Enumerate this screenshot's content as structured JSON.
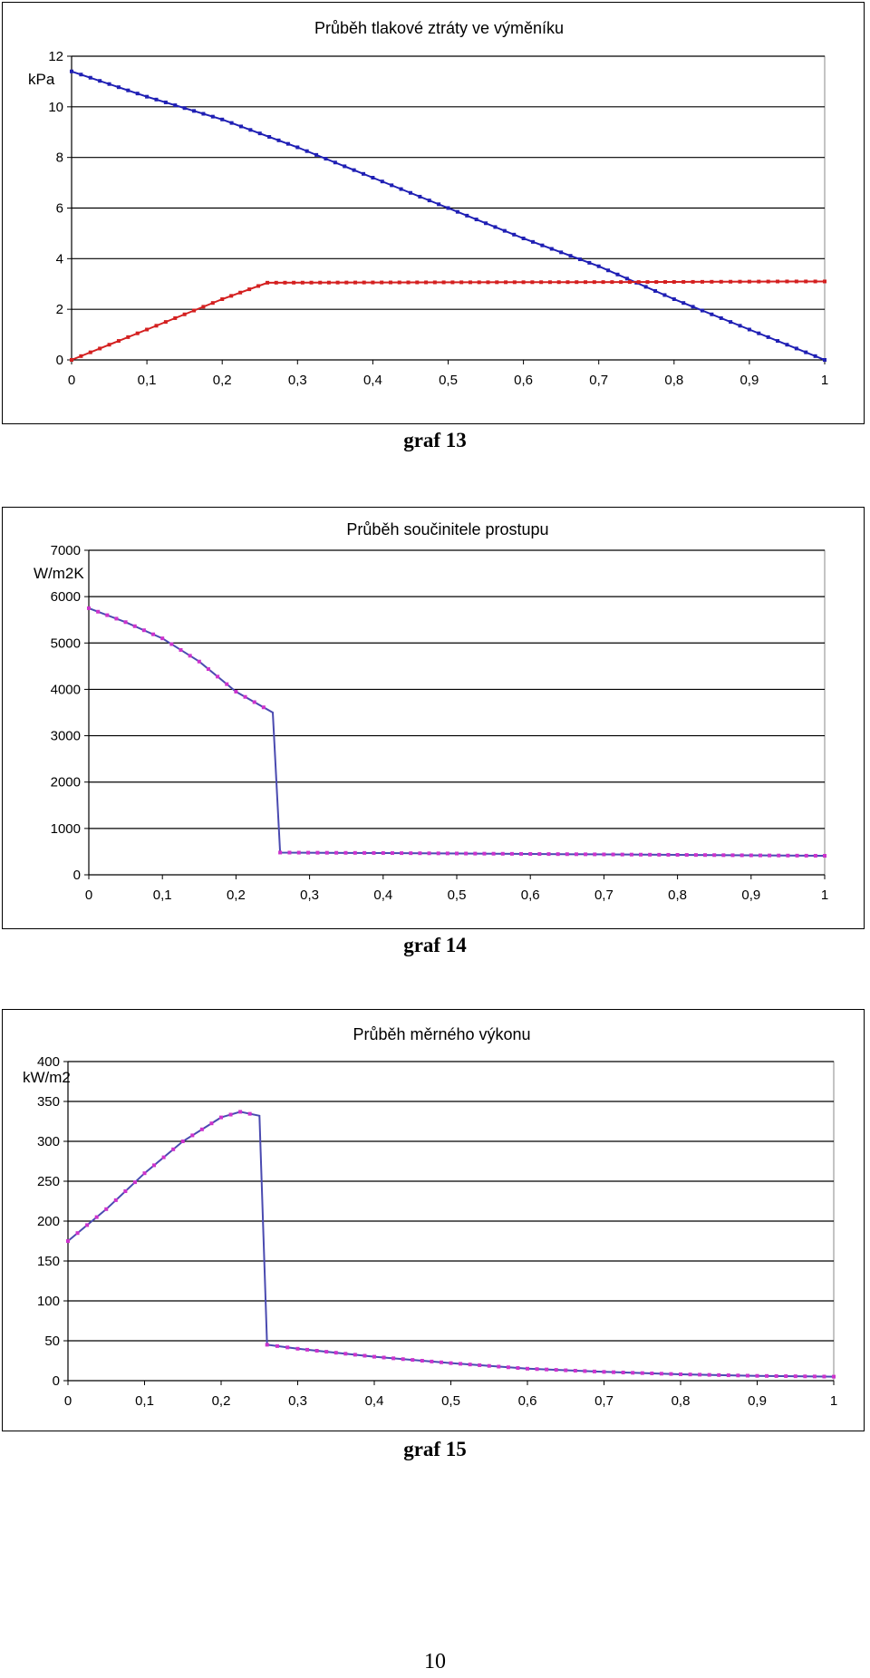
{
  "charts": [
    {
      "caption": "graf 13",
      "chart_data": {
        "type": "line",
        "title": "Průběh tlakové ztráty ve výměníku",
        "ylabel": "kPa",
        "xlabel": "",
        "xlim": [
          0,
          1
        ],
        "ylim": [
          0,
          12
        ],
        "x_ticks": [
          "0",
          "0,1",
          "0,2",
          "0,3",
          "0,4",
          "0,5",
          "0,6",
          "0,7",
          "0,8",
          "0,9",
          "1"
        ],
        "y_ticks": [
          "0",
          "2",
          "4",
          "6",
          "8",
          "10",
          "12"
        ],
        "grid": true,
        "legend": "none",
        "series": [
          {
            "color": "#1f1fb4",
            "x": [
              0,
              0.1,
              0.2,
              0.3,
              0.4,
              0.5,
              0.6,
              0.7,
              0.8,
              0.9,
              1.0
            ],
            "y": [
              11.4,
              10.4,
              9.5,
              8.4,
              7.2,
              6.0,
              4.8,
              3.7,
              2.4,
              1.2,
              0.0
            ]
          },
          {
            "color": "#d42020",
            "x": [
              0,
              0.1,
              0.2,
              0.26,
              0.4,
              0.6,
              0.8,
              0.95,
              1.0
            ],
            "y": [
              0,
              1.2,
              2.4,
              3.05,
              3.06,
              3.07,
              3.08,
              3.1,
              3.1
            ]
          }
        ]
      }
    },
    {
      "caption": "graf 14",
      "chart_data": {
        "type": "line",
        "title": "Průběh součinitele prostupu",
        "ylabel": "W/m2K",
        "xlabel": "",
        "xlim": [
          0,
          1
        ],
        "ylim": [
          0,
          7000
        ],
        "x_ticks": [
          "0",
          "0,1",
          "0,2",
          "0,3",
          "0,4",
          "0,5",
          "0,6",
          "0,7",
          "0,8",
          "0,9",
          "1"
        ],
        "y_ticks": [
          "0",
          "1000",
          "2000",
          "3000",
          "4000",
          "5000",
          "6000",
          "7000"
        ],
        "grid": true,
        "legend": "none",
        "series": [
          {
            "color": "#cc33cc",
            "line_color": "#4a4ab0",
            "x": [
              0,
              0.05,
              0.1,
              0.15,
              0.2,
              0.25,
              0.26,
              0.4,
              0.6,
              0.8,
              1.0
            ],
            "y": [
              5750,
              5450,
              5100,
              4600,
              3950,
              3500,
              480,
              470,
              450,
              430,
              410
            ]
          }
        ]
      }
    },
    {
      "caption": "graf 15",
      "chart_data": {
        "type": "line",
        "title": "Průběh měrného výkonu",
        "ylabel": "kW/m2",
        "xlabel": "",
        "xlim": [
          0,
          1
        ],
        "ylim": [
          0,
          400
        ],
        "x_ticks": [
          "0",
          "0,1",
          "0,2",
          "0,3",
          "0,4",
          "0,5",
          "0,6",
          "0,7",
          "0,8",
          "0,9",
          "1"
        ],
        "y_ticks": [
          "0",
          "50",
          "100",
          "150",
          "200",
          "250",
          "300",
          "350",
          "400"
        ],
        "grid": true,
        "legend": "none",
        "series": [
          {
            "color": "#cc33cc",
            "line_color": "#4a4ab0",
            "x": [
              0,
              0.05,
              0.1,
              0.15,
              0.2,
              0.225,
              0.25,
              0.26,
              0.3,
              0.4,
              0.5,
              0.6,
              0.7,
              0.8,
              0.9,
              1.0
            ],
            "y": [
              175,
              215,
              260,
              300,
              330,
              337,
              332,
              45,
              40,
              30,
              22,
              15,
              11,
              8,
              6,
              5
            ]
          }
        ]
      }
    }
  ],
  "page_number": "10"
}
